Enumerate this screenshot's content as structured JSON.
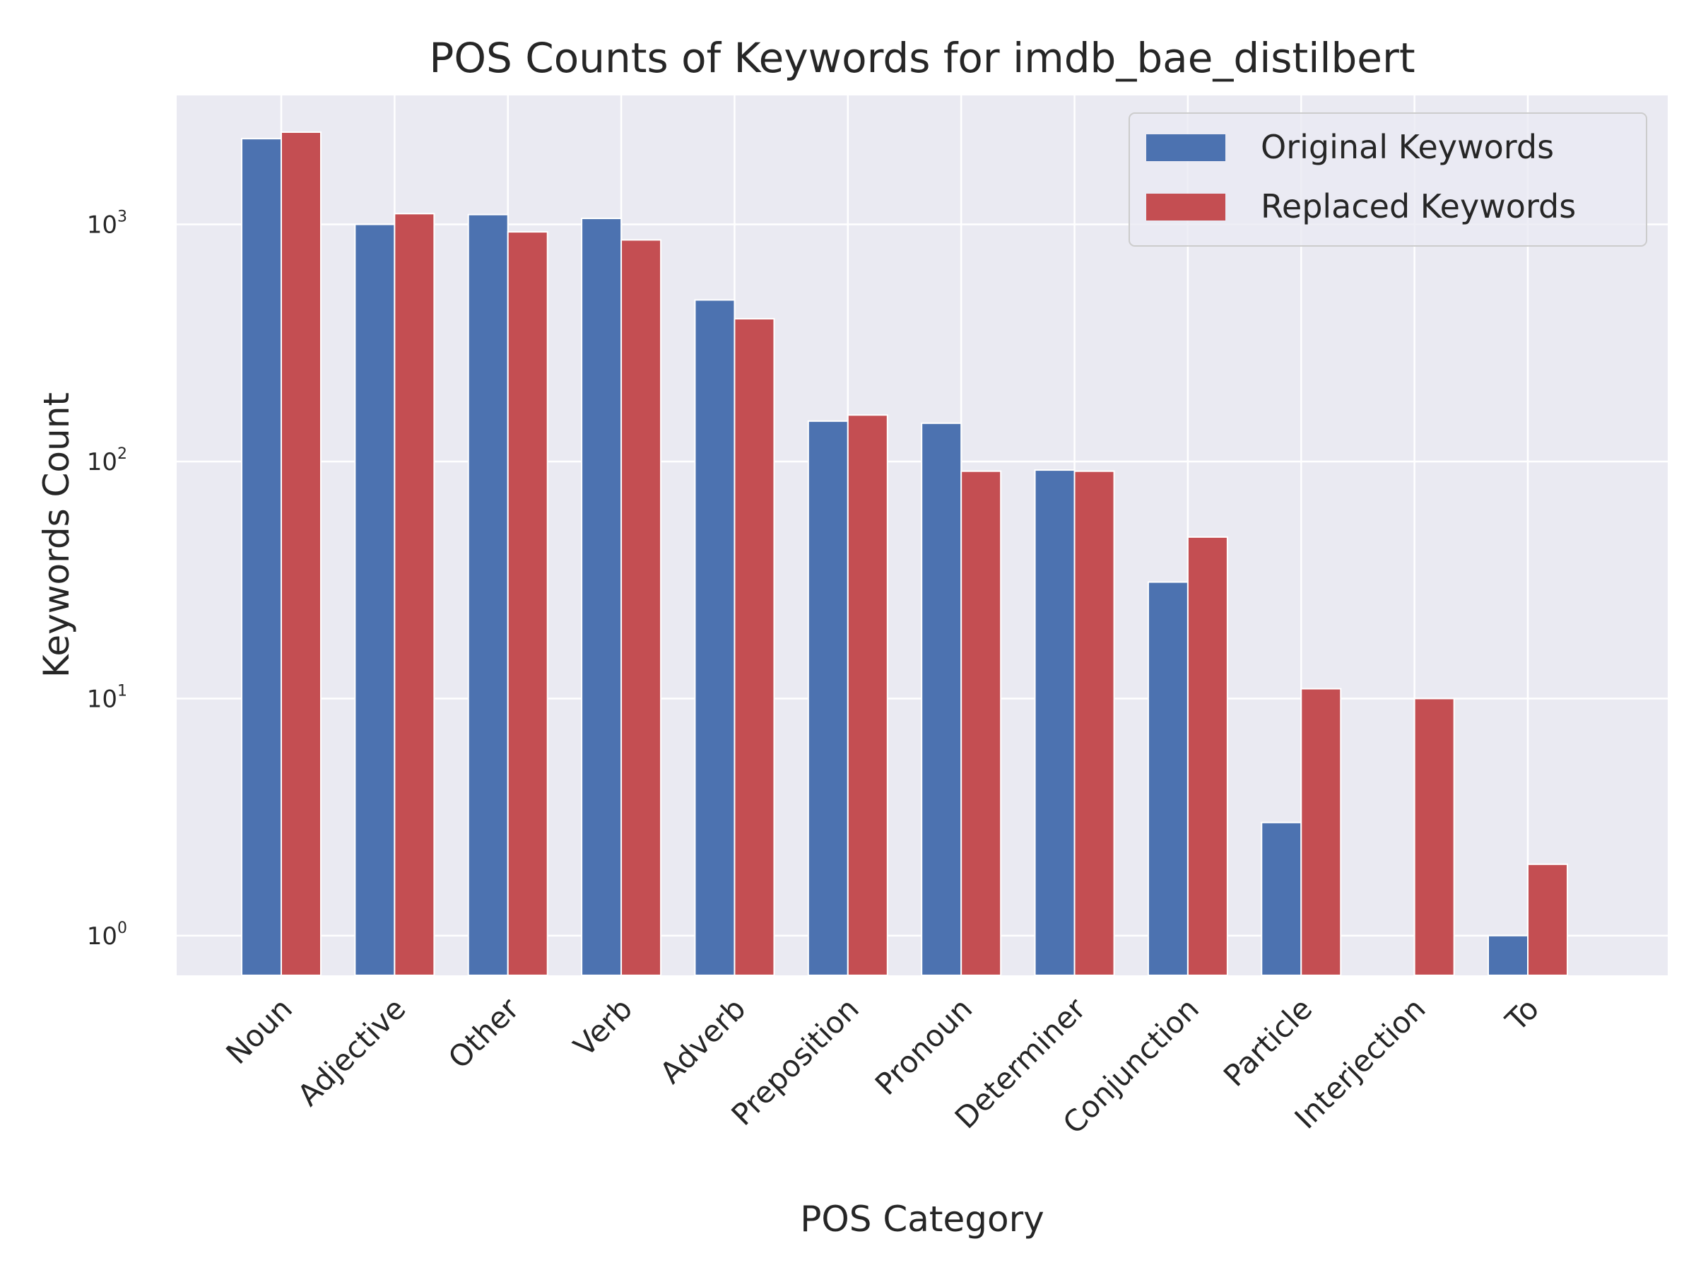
{
  "chart_data": {
    "type": "bar",
    "title": "POS Counts of Keywords for imdb_bae_distilbert",
    "xlabel": "POS Category",
    "ylabel": "Keywords Count",
    "yscale": "log",
    "ylim": [
      0.68,
      3500
    ],
    "y_ticks": [
      {
        "value": 1,
        "base": "10",
        "exp": "0"
      },
      {
        "value": 10,
        "base": "10",
        "exp": "1"
      },
      {
        "value": 100,
        "base": "10",
        "exp": "2"
      },
      {
        "value": 1000,
        "base": "10",
        "exp": "3"
      }
    ],
    "categories": [
      "Noun",
      "Adjective",
      "Other",
      "Verb",
      "Adverb",
      "Preposition",
      "Pronoun",
      "Determiner",
      "Conjunction",
      "Particle",
      "Interjection",
      "To"
    ],
    "series": [
      {
        "name": "Original Keywords",
        "color": "#4c72b0",
        "values": [
          2300,
          1000,
          1100,
          1060,
          480,
          148,
          145,
          92,
          31,
          3,
          0,
          1
        ]
      },
      {
        "name": "Replaced Keywords",
        "color": "#c44e52",
        "values": [
          2450,
          1110,
          930,
          860,
          400,
          157,
          91,
          91,
          48,
          11,
          10,
          2
        ]
      }
    ],
    "grid": true,
    "legend_position": "top-right",
    "background_color": "#eaeaf2",
    "grid_color": "#ffffff"
  }
}
